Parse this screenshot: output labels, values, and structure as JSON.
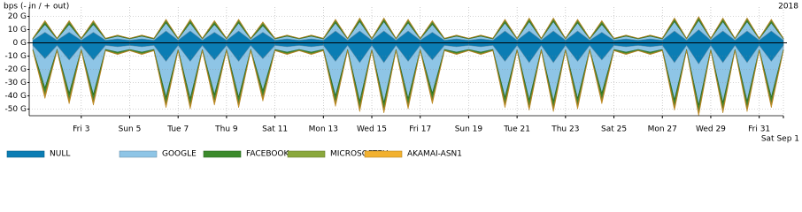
{
  "chart_data": {
    "type": "area",
    "y_label": "bps (- in / + out)",
    "annotation": "2018",
    "xlim": [
      0.85,
      32
    ],
    "ylim": [
      -55,
      27
    ],
    "grid": true,
    "stacked": true,
    "xticks": [
      {
        "value": 3,
        "label": "Fri 3"
      },
      {
        "value": 5,
        "label": "Sun 5"
      },
      {
        "value": 7,
        "label": "Tue 7"
      },
      {
        "value": 9,
        "label": "Thu 9"
      },
      {
        "value": 11,
        "label": "Sat 11"
      },
      {
        "value": 13,
        "label": "Mon 13"
      },
      {
        "value": 15,
        "label": "Wed 15"
      },
      {
        "value": 17,
        "label": "Fri 17"
      },
      {
        "value": 19,
        "label": "Sun 19"
      },
      {
        "value": 21,
        "label": "Tue 21"
      },
      {
        "value": 23,
        "label": "Thu 23"
      },
      {
        "value": 25,
        "label": "Sat 25"
      },
      {
        "value": 27,
        "label": "Mon 27"
      },
      {
        "value": 29,
        "label": "Wed 29"
      },
      {
        "value": 31,
        "label": "Fri 31"
      },
      {
        "value": 32,
        "label": "Sat Sep 1"
      }
    ],
    "yticks": [
      {
        "value": 20,
        "label": "20 G"
      },
      {
        "value": 10,
        "label": "10 G"
      },
      {
        "value": 0,
        "label": "0 G"
      },
      {
        "value": -10,
        "label": "-10 G"
      },
      {
        "value": -20,
        "label": "-20 G"
      },
      {
        "value": -30,
        "label": "-30 G"
      },
      {
        "value": -40,
        "label": "-40 G"
      },
      {
        "value": -50,
        "label": "-50 G"
      }
    ],
    "x": [
      1,
      1.5,
      2,
      2.5,
      3,
      3.5,
      4,
      4.5,
      5,
      5.5,
      6,
      6.5,
      7,
      7.5,
      8,
      8.5,
      9,
      9.5,
      10,
      10.5,
      11,
      11.5,
      12,
      12.5,
      13,
      13.5,
      14,
      14.5,
      15,
      15.5,
      16,
      16.5,
      17,
      17.5,
      18,
      18.5,
      19,
      19.5,
      20,
      20.5,
      21,
      21.5,
      22,
      22.5,
      23,
      23.5,
      24,
      24.5,
      25,
      25.5,
      26,
      26.5,
      27,
      27.5,
      28,
      28.5,
      29,
      29.5,
      30,
      30.5,
      31,
      31.5,
      32
    ],
    "series": [
      {
        "name": "NULL",
        "color": "#0b7db4",
        "out": [
          2,
          8,
          2,
          8,
          2,
          8,
          2,
          3,
          2,
          3,
          2,
          9,
          2,
          9,
          2,
          8,
          2,
          9,
          2,
          8,
          2,
          3,
          2,
          3,
          2,
          9,
          2,
          9,
          2,
          9,
          2,
          9,
          2,
          8,
          2,
          3,
          2,
          3,
          2,
          9,
          2,
          9,
          2,
          9,
          2,
          9,
          2,
          8,
          2,
          3,
          2,
          3,
          2,
          9,
          2,
          10,
          2,
          9,
          2,
          9,
          2,
          9,
          2
        ],
        "in": [
          -2,
          -12,
          -2,
          -13,
          -2,
          -13,
          -2,
          -3,
          -2,
          -3,
          -2,
          -14,
          -2,
          -14,
          -2,
          -13,
          -2,
          -14,
          -2,
          -12,
          -2,
          -3,
          -2,
          -3,
          -2,
          -14,
          -2,
          -15,
          -2,
          -15,
          -2,
          -14,
          -2,
          -13,
          -2,
          -3,
          -2,
          -3,
          -2,
          -14,
          -2,
          -15,
          -2,
          -15,
          -2,
          -14,
          -2,
          -13,
          -2,
          -3,
          -2,
          -3,
          -2,
          -15,
          -2,
          -16,
          -2,
          -15,
          -2,
          -15,
          -2,
          -14,
          -2
        ]
      },
      {
        "name": "GOOGLE",
        "color": "#8ec5e6",
        "out": [
          1,
          6,
          1,
          6,
          1,
          6,
          1,
          2,
          1,
          2,
          1,
          6,
          1,
          6,
          1,
          6,
          1,
          6,
          1,
          5,
          1,
          2,
          1,
          2,
          1,
          6,
          1,
          7,
          1,
          7,
          1,
          6,
          1,
          6,
          1,
          2,
          1,
          2,
          1,
          6,
          1,
          7,
          1,
          7,
          1,
          6,
          1,
          6,
          1,
          2,
          1,
          2,
          1,
          7,
          1,
          7,
          1,
          7,
          1,
          7,
          1,
          6,
          1
        ],
        "in": [
          -3,
          -22,
          -3,
          -25,
          -3,
          -26,
          -3,
          -4,
          -3,
          -4,
          -3,
          -27,
          -3,
          -28,
          -3,
          -26,
          -3,
          -27,
          -3,
          -24,
          -3,
          -4,
          -3,
          -4,
          -3,
          -26,
          -3,
          -29,
          -3,
          -30,
          -3,
          -28,
          -3,
          -25,
          -3,
          -4,
          -3,
          -4,
          -3,
          -27,
          -3,
          -28,
          -3,
          -29,
          -3,
          -28,
          -3,
          -25,
          -3,
          -4,
          -3,
          -4,
          -3,
          -28,
          -3,
          -31,
          -3,
          -30,
          -3,
          -29,
          -3,
          -27,
          -3
        ]
      },
      {
        "name": "FACEBOOK",
        "color": "#3b8a2b",
        "out": [
          0.3,
          1.5,
          0.3,
          1.5,
          0.3,
          1.5,
          0.3,
          0.5,
          0.3,
          0.5,
          0.3,
          1.5,
          0.3,
          1.5,
          0.3,
          1.5,
          0.3,
          1.5,
          0.3,
          1.5,
          0.3,
          0.5,
          0.3,
          0.5,
          0.3,
          1.5,
          0.3,
          1.5,
          0.3,
          1.5,
          0.3,
          1.5,
          0.3,
          1.5,
          0.3,
          0.5,
          0.3,
          0.5,
          0.3,
          1.5,
          0.3,
          1.5,
          0.3,
          1.5,
          0.3,
          1.5,
          0.3,
          1.5,
          0.3,
          0.5,
          0.3,
          0.5,
          0.3,
          1.5,
          0.3,
          1.5,
          0.3,
          1.5,
          0.3,
          1.5,
          0.3,
          1.5,
          0.3
        ],
        "in": [
          -0.5,
          -4,
          -0.5,
          -4,
          -0.5,
          -4,
          -0.5,
          -1,
          -0.5,
          -1,
          -0.5,
          -4,
          -0.5,
          -4,
          -0.5,
          -4,
          -0.5,
          -4,
          -0.5,
          -4,
          -0.5,
          -1,
          -0.5,
          -1,
          -0.5,
          -4,
          -0.5,
          -4,
          -0.5,
          -4,
          -0.5,
          -4,
          -0.5,
          -4,
          -0.5,
          -1,
          -0.5,
          -1,
          -0.5,
          -4,
          -0.5,
          -4,
          -0.5,
          -4,
          -0.5,
          -4,
          -0.5,
          -4,
          -0.5,
          -1,
          -0.5,
          -1,
          -0.5,
          -4,
          -0.5,
          -4,
          -0.5,
          -4,
          -0.5,
          -4,
          -0.5,
          -4,
          -0.5
        ]
      },
      {
        "name": "MICROSOFTEU",
        "color": "#8aa83c",
        "out": [
          0.2,
          1,
          0.2,
          1,
          0.2,
          1,
          0.2,
          0.3,
          0.2,
          0.3,
          0.2,
          1,
          0.2,
          1,
          0.2,
          1,
          0.2,
          1,
          0.2,
          1,
          0.2,
          0.3,
          0.2,
          0.3,
          0.2,
          1,
          0.2,
          1,
          0.2,
          1,
          0.2,
          1,
          0.2,
          1,
          0.2,
          0.3,
          0.2,
          0.3,
          0.2,
          1,
          0.2,
          1,
          0.2,
          1,
          0.2,
          1,
          0.2,
          1,
          0.2,
          0.3,
          0.2,
          0.3,
          0.2,
          1,
          0.2,
          1,
          0.2,
          1,
          0.2,
          1,
          0.2,
          1,
          0.2
        ],
        "in": [
          -0.3,
          -2,
          -0.3,
          -2,
          -0.3,
          -2,
          -0.3,
          -0.5,
          -0.3,
          -0.5,
          -0.3,
          -2,
          -0.3,
          -2,
          -0.3,
          -2,
          -0.3,
          -2,
          -0.3,
          -2,
          -0.3,
          -0.5,
          -0.3,
          -0.5,
          -0.3,
          -2,
          -0.3,
          -2,
          -0.3,
          -2,
          -0.3,
          -2,
          -0.3,
          -2,
          -0.3,
          -0.5,
          -0.3,
          -0.5,
          -0.3,
          -2,
          -0.3,
          -2,
          -0.3,
          -2,
          -0.3,
          -2,
          -0.3,
          -2,
          -0.3,
          -0.5,
          -0.3,
          -0.5,
          -0.3,
          -2,
          -0.3,
          -2,
          -0.3,
          -2,
          -0.3,
          -2,
          -0.3,
          -2,
          -0.3
        ]
      },
      {
        "name": "AKAMAI-ASN1",
        "color": "#f2b12f",
        "out": [
          0,
          0.3,
          0,
          0.3,
          0,
          0.3,
          0,
          0.1,
          0,
          0.1,
          0,
          0.3,
          0,
          0.3,
          0,
          0.3,
          0,
          0.3,
          0,
          0.3,
          0,
          0.1,
          0,
          0.1,
          0,
          0.3,
          0,
          0.3,
          0,
          0.3,
          0,
          0.3,
          0,
          0.3,
          0,
          0.1,
          0,
          0.1,
          0,
          0.3,
          0,
          0.3,
          0,
          0.3,
          0,
          0.3,
          0,
          0.3,
          0,
          0.1,
          0,
          0.1,
          0,
          0.3,
          0,
          0.3,
          0,
          0.3,
          0,
          0.3,
          0,
          0.3,
          0
        ],
        "in": [
          -0.2,
          -2,
          -0.2,
          -2,
          -0.2,
          -2,
          -0.2,
          -0.3,
          -0.2,
          -0.3,
          -0.2,
          -2,
          -0.2,
          -2,
          -0.2,
          -2,
          -0.2,
          -2,
          -0.2,
          -2,
          -0.2,
          -0.3,
          -0.2,
          -0.3,
          -0.2,
          -2,
          -0.2,
          -2,
          -0.2,
          -2,
          -0.2,
          -2,
          -0.2,
          -2,
          -0.2,
          -0.3,
          -0.2,
          -0.3,
          -0.2,
          -2,
          -0.2,
          -2,
          -0.2,
          -2,
          -0.2,
          -2,
          -0.2,
          -2,
          -0.2,
          -0.3,
          -0.2,
          -0.3,
          -0.2,
          -2,
          -0.2,
          -2,
          -0.2,
          -2,
          -0.2,
          -2,
          -0.2,
          -2,
          -0.2
        ]
      }
    ]
  }
}
